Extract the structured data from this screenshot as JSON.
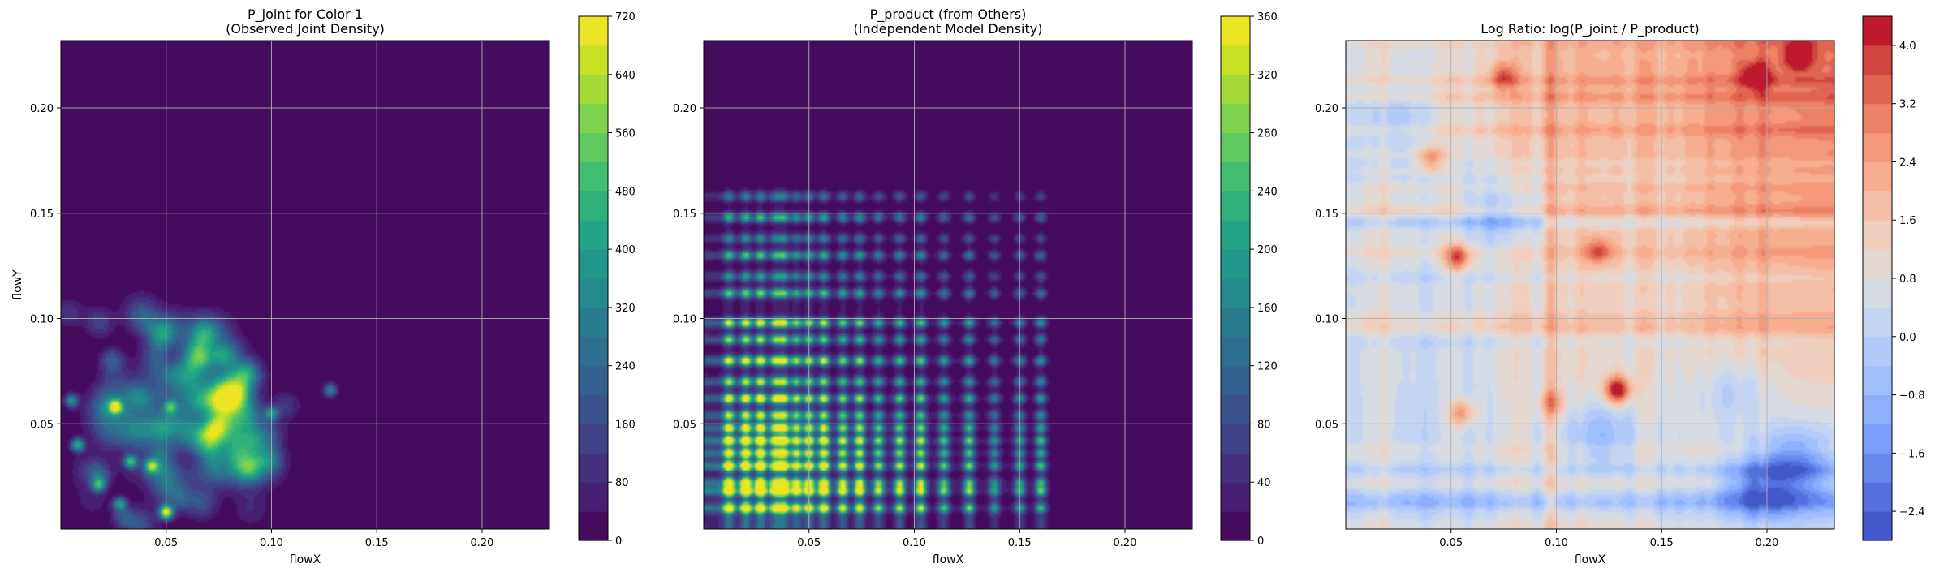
{
  "chart_data": [
    {
      "type": "heatmap",
      "title": "P_joint for Color 1\n(Observed Joint Density)",
      "xlabel": "flowX",
      "ylabel": "flowY",
      "xlim": [
        0.0,
        0.232
      ],
      "ylim": [
        0.0,
        0.232
      ],
      "xticks": [
        0.05,
        0.1,
        0.15,
        0.2
      ],
      "yticks": [
        0.05,
        0.1,
        0.15,
        0.2
      ],
      "xtick_labels": [
        "0.05",
        "0.10",
        "0.15",
        "0.20"
      ],
      "ytick_labels": [
        "0.05",
        "0.10",
        "0.15",
        "0.20"
      ],
      "grid": true,
      "colormap": "viridis",
      "colorbar": {
        "min": 0,
        "max": 720,
        "ticks": [
          0,
          80,
          160,
          240,
          320,
          400,
          480,
          560,
          640,
          720
        ],
        "levels": 18
      },
      "features": {
        "hotspots": [
          {
            "x": 0.05,
            "y": 0.008,
            "value": 690
          },
          {
            "x": 0.026,
            "y": 0.058,
            "value": 560
          },
          {
            "x": 0.008,
            "y": 0.04,
            "value": 440
          },
          {
            "x": 0.033,
            "y": 0.032,
            "value": 440
          },
          {
            "x": 0.043,
            "y": 0.03,
            "value": 420
          },
          {
            "x": 0.018,
            "y": 0.021,
            "value": 400
          },
          {
            "x": 0.028,
            "y": 0.012,
            "value": 380
          },
          {
            "x": 0.005,
            "y": 0.061,
            "value": 360
          },
          {
            "x": 0.052,
            "y": 0.058,
            "value": 360
          },
          {
            "x": 0.1,
            "y": 0.055,
            "value": 340
          },
          {
            "x": 0.128,
            "y": 0.066,
            "value": 320
          }
        ]
      }
    },
    {
      "type": "heatmap",
      "title": "P_product (from Others)\n(Independent Model Density)",
      "xlabel": "flowX",
      "ylabel": "",
      "xlim": [
        0.0,
        0.232
      ],
      "ylim": [
        0.0,
        0.232
      ],
      "xticks": [
        0.05,
        0.1,
        0.15,
        0.2
      ],
      "yticks": [
        0.05,
        0.1,
        0.15,
        0.2
      ],
      "xtick_labels": [
        "0.05",
        "0.10",
        "0.15",
        "0.20"
      ],
      "ytick_labels": [
        "0.05",
        "0.10",
        "0.15",
        "0.20"
      ],
      "grid": true,
      "colormap": "viridis",
      "colorbar": {
        "min": 0,
        "max": 360,
        "ticks": [
          0,
          40,
          80,
          120,
          160,
          200,
          240,
          280,
          320,
          360
        ],
        "levels": 18
      },
      "features": {
        "grid_x_lines": [
          0.012,
          0.02,
          0.027,
          0.034,
          0.038,
          0.044,
          0.05,
          0.057,
          0.066,
          0.074,
          0.083,
          0.093,
          0.103,
          0.114,
          0.126,
          0.138,
          0.15,
          0.16
        ],
        "grid_y_lines": [
          0.01,
          0.018,
          0.022,
          0.03,
          0.036,
          0.042,
          0.048,
          0.054,
          0.062,
          0.07,
          0.08,
          0.09,
          0.098,
          0.112,
          0.12,
          0.13,
          0.138,
          0.148,
          0.158
        ]
      }
    },
    {
      "type": "heatmap",
      "title": "Log Ratio: log(P_joint / P_product)",
      "xlabel": "flowX",
      "ylabel": "",
      "xlim": [
        0.0,
        0.232
      ],
      "ylim": [
        0.0,
        0.232
      ],
      "xticks": [
        0.05,
        0.1,
        0.15,
        0.2
      ],
      "yticks": [
        0.05,
        0.1,
        0.15,
        0.2
      ],
      "xtick_labels": [
        "0.05",
        "0.10",
        "0.15",
        "0.20"
      ],
      "ytick_labels": [
        "0.05",
        "0.10",
        "0.15",
        "0.20"
      ],
      "grid": true,
      "colormap": "coolwarm",
      "colorbar": {
        "min": -2.8,
        "max": 4.4,
        "ticks": [
          -2.4,
          -1.6,
          -0.8,
          0.0,
          0.8,
          1.6,
          2.4,
          3.2,
          4.0
        ],
        "tick_labels": [
          "−2.4",
          "−1.6",
          "−0.8",
          "0.0",
          "0.8",
          "1.6",
          "2.4",
          "3.2",
          "4.0"
        ],
        "levels": 18
      },
      "features": {
        "hotspots": [
          {
            "x": 0.129,
            "y": 0.066,
            "value": 4.0
          },
          {
            "x": 0.053,
            "y": 0.129,
            "value": 3.0
          },
          {
            "x": 0.215,
            "y": 0.225,
            "value": 3.0
          },
          {
            "x": 0.195,
            "y": 0.215,
            "value": 2.6
          },
          {
            "x": 0.04,
            "y": 0.176,
            "value": 2.2
          },
          {
            "x": 0.055,
            "y": 0.055,
            "value": 2.2
          },
          {
            "x": 0.098,
            "y": 0.06,
            "value": 1.8
          },
          {
            "x": 0.12,
            "y": 0.132,
            "value": 2.0
          },
          {
            "x": 0.075,
            "y": 0.215,
            "value": 2.0
          }
        ],
        "coldspots": [
          {
            "x": 0.195,
            "y": 0.02,
            "value": -2.4
          },
          {
            "x": 0.215,
            "y": 0.03,
            "value": -2.2
          },
          {
            "x": 0.075,
            "y": 0.148,
            "value": -1.6
          },
          {
            "x": 0.12,
            "y": 0.045,
            "value": -1.6
          },
          {
            "x": 0.02,
            "y": 0.195,
            "value": -1.2
          },
          {
            "x": 0.185,
            "y": 0.065,
            "value": -1.2
          }
        ]
      }
    }
  ]
}
